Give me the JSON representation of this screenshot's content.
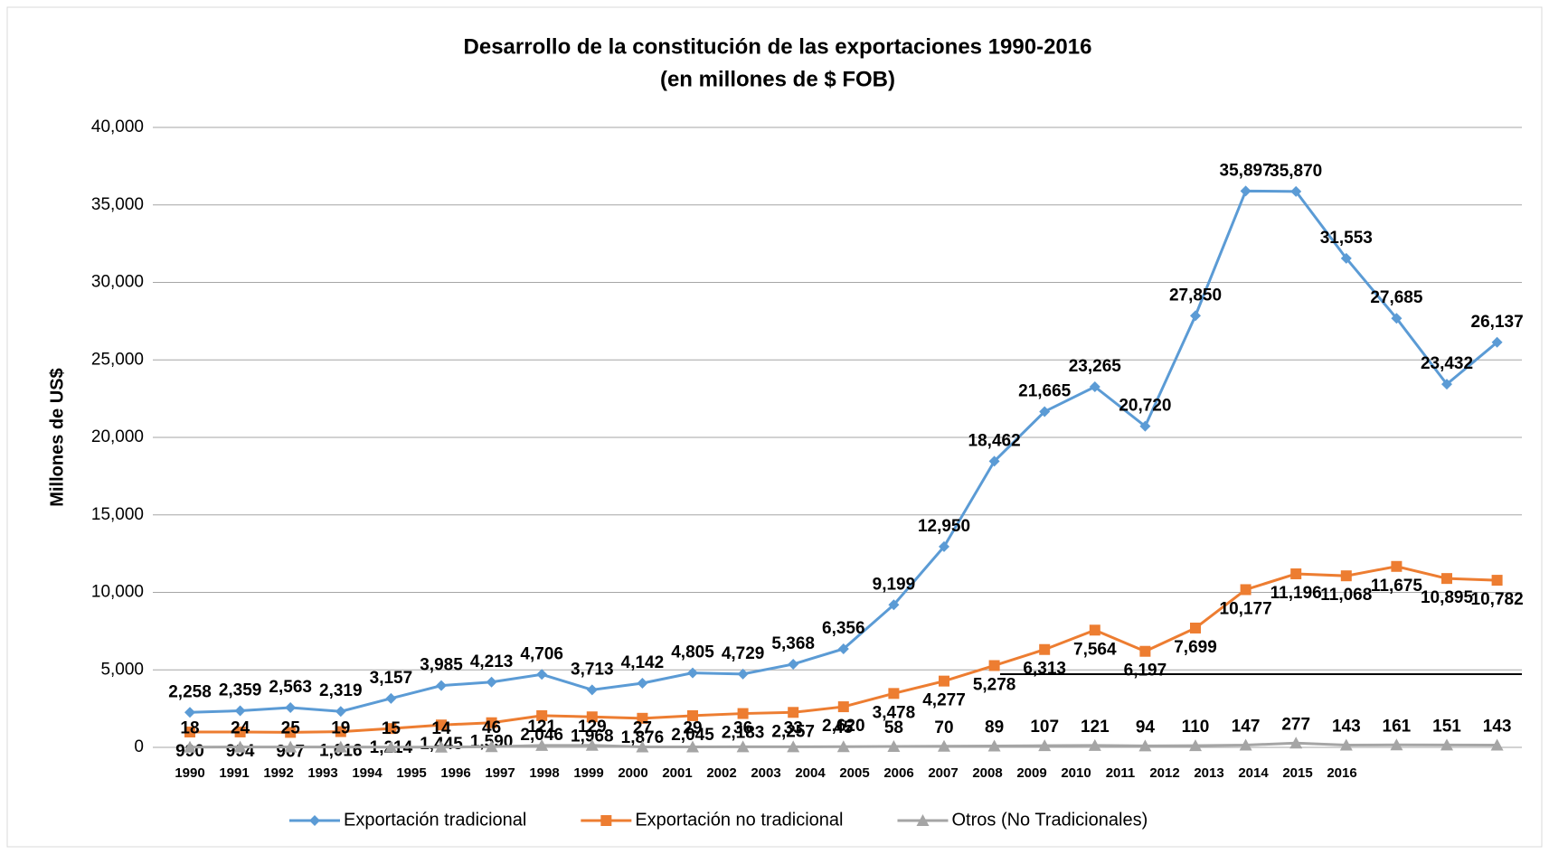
{
  "chart_data": {
    "type": "line",
    "title": "Desarrollo de la constitución de las exportaciones 1990-2016",
    "subtitle": "(en millones de $ FOB)",
    "y_label": "Millones de US$",
    "categories": [
      "1990",
      "1991",
      "1992",
      "1993",
      "1994",
      "1995",
      "1996",
      "1997",
      "1998",
      "1999",
      "2000",
      "2001",
      "2002",
      "2003",
      "2004",
      "2005",
      "2006",
      "2007",
      "2008",
      "2009",
      "2010",
      "2011",
      "2012",
      "2013",
      "2014",
      "2015",
      "2016"
    ],
    "ylim": [
      0,
      40000
    ],
    "yticks": [
      0,
      {
        "value": 5000,
        "label": "5,000"
      },
      {
        "value": 10000,
        "label": "10,000"
      },
      {
        "value": 15000,
        "label": "15,000"
      },
      {
        "value": 20000,
        "label": "20,000"
      },
      {
        "value": 25000,
        "label": "25,000"
      },
      {
        "value": 30000,
        "label": "30,000"
      },
      {
        "value": 35000,
        "label": "35,000"
      },
      {
        "value": 40000,
        "label": "40,000"
      }
    ],
    "grid": true,
    "legend": "bottom",
    "series": [
      {
        "name": "Exportación tradicional",
        "color": "#5b9bd5",
        "marker": "diamond",
        "values": [
          2258,
          2359,
          2563,
          2319,
          3157,
          3985,
          4213,
          4706,
          3713,
          4142,
          4805,
          4729,
          5368,
          6356,
          9199,
          12950,
          18462,
          21665,
          23265,
          20720,
          27850,
          35897,
          35870,
          31553,
          27685,
          23432,
          26137
        ],
        "value_labels": [
          "2,258",
          "2,359",
          "2,563",
          "2,319",
          "3,157",
          "3,985",
          "4,213",
          "4,706",
          "3,713",
          "4,142",
          "4,805",
          "4,729",
          "5,368",
          "6,356",
          "9,199",
          "12,950",
          "18,462",
          "21,665",
          "23,265",
          "20,720",
          "27,850",
          "35,897",
          "35,870",
          "31,553",
          "27,685",
          "23,432",
          "26,137"
        ]
      },
      {
        "name": "Exportación no tradicional",
        "color": "#ed7d31",
        "marker": "square",
        "values": [
          990,
          994,
          967,
          1016,
          1214,
          1445,
          1590,
          2046,
          1968,
          1876,
          2045,
          2183,
          2257,
          2620,
          3478,
          4277,
          5278,
          6313,
          7564,
          6197,
          7699,
          10177,
          11196,
          11068,
          11675,
          10895,
          10782
        ],
        "value_labels": [
          "990",
          "994",
          "967",
          "1,016",
          "1,214",
          "1,445",
          "1,590",
          "2,046",
          "1,968",
          "1,876",
          "2,045",
          "2,183",
          "2,257",
          "2,620",
          "3,478",
          "4,277",
          "5,278",
          "6,313",
          "7,564",
          "6,197",
          "7,699",
          "10,177",
          "11,196",
          "11,068",
          "11,675",
          "10,895",
          "10,782"
        ]
      },
      {
        "name": "Otros (No Tradicionales)",
        "color": "#a5a5a5",
        "marker": "triangle",
        "values": [
          18,
          24,
          25,
          19,
          15,
          14,
          46,
          121,
          129,
          27,
          29,
          36,
          33,
          45,
          58,
          70,
          89,
          107,
          121,
          94,
          110,
          147,
          277,
          143,
          161,
          151,
          143
        ]
      }
    ]
  }
}
